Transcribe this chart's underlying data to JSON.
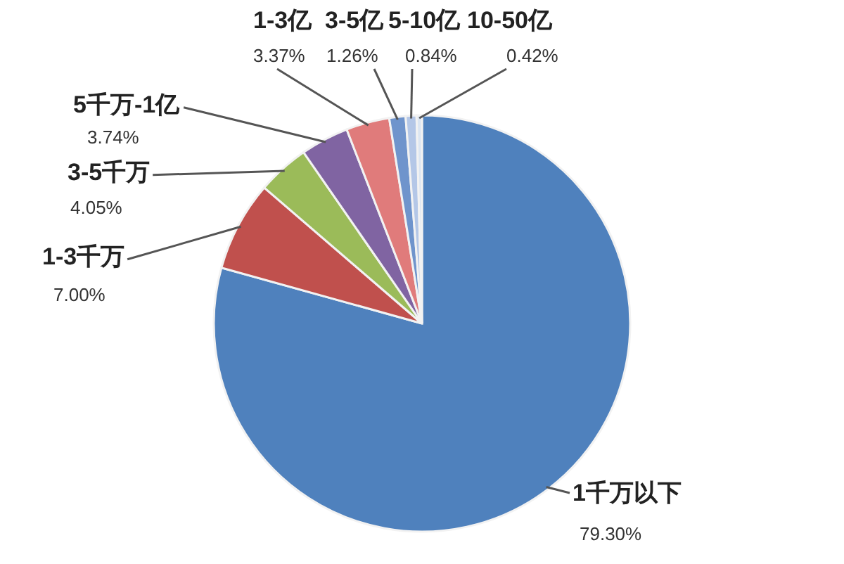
{
  "chart_data": {
    "type": "pie",
    "categories": [
      "1千万以下",
      "1-3千万",
      "3-5千万",
      "5千万-1亿",
      "1-3亿",
      "3-5亿",
      "5-10亿",
      "10-50亿"
    ],
    "values": [
      79.3,
      7.0,
      4.05,
      3.74,
      3.37,
      1.26,
      0.84,
      0.42
    ],
    "colors": [
      "#4f81bd",
      "#c0504d",
      "#9bbb59",
      "#8064a2",
      "#e07b7b",
      "#6f94cc",
      "#b4c7e7",
      "#dce6f2"
    ],
    "value_labels": [
      "79.30%",
      "7.00%",
      "4.05%",
      "3.74%",
      "3.37%",
      "1.26%",
      "0.84%",
      "0.42%"
    ]
  }
}
